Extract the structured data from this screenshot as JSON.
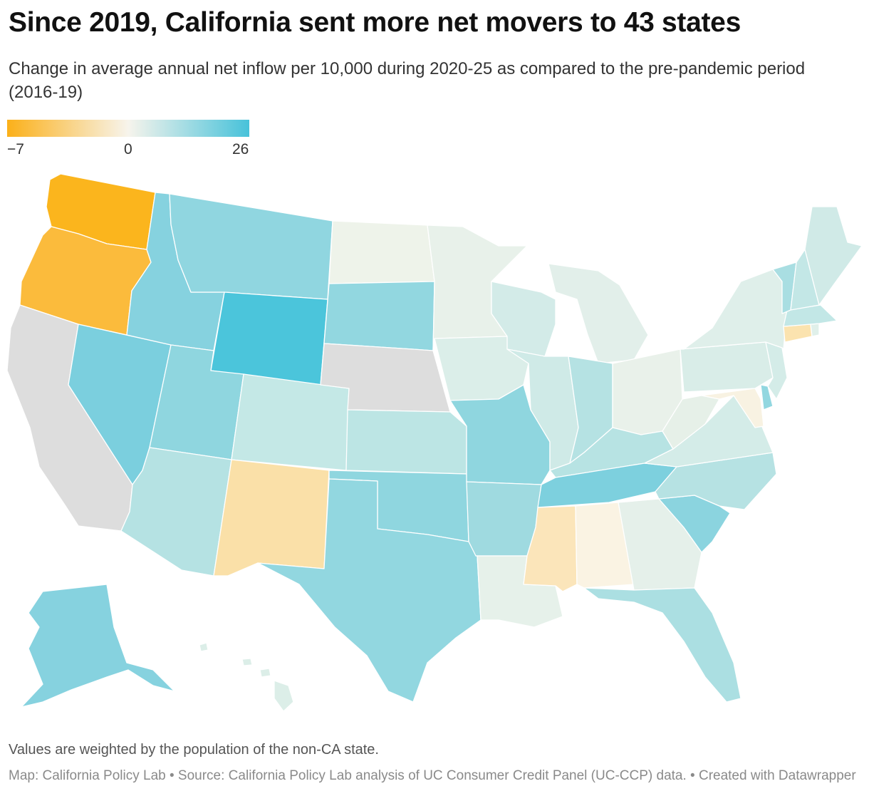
{
  "header": {
    "title": "Since 2019, California sent more net movers to 43 states",
    "subtitle": "Change in average annual net inflow per 10,000 during 2020-25 as compared to the pre-pandemic period (2016-19)"
  },
  "legend": {
    "min_label": "−7",
    "mid_label": "0",
    "max_label": "26",
    "colors": {
      "low": "#fbb019",
      "mid": "#f7f4ec",
      "high": "#47c2da"
    }
  },
  "map": {
    "no_data_color": "#d9d9d9",
    "state_colors": {
      "WA": "#fbb51d",
      "OR": "#fbbb3c",
      "CA": "#dddddd",
      "NV": "#7bcfde",
      "ID": "#86d2df",
      "MT": "#90d6e0",
      "WY": "#4bc5db",
      "UT": "#8fd6df",
      "AZ": "#b5e2e3",
      "CO": "#c4e8e6",
      "NM": "#fae0a8",
      "ND": "#eef3ea",
      "SD": "#92d7e0",
      "NE": "#dddddd",
      "KS": "#bce5e4",
      "OK": "#8fd6df",
      "TX": "#92d7e0",
      "MN": "#e8f1ea",
      "IA": "#dbeee9",
      "MO": "#8fd6df",
      "AR": "#9fdae0",
      "LA": "#e6f1ea",
      "WI": "#d3ebe8",
      "IL": "#cfeae7",
      "MI": "#e2efea",
      "IN": "#b5e2e3",
      "OH": "#e9f1ea",
      "KY": "#b7e3e3",
      "TN": "#7dd0de",
      "MS": "#fbe5ba",
      "AL": "#faf3e3",
      "GA": "#e5f0ea",
      "FL": "#abdfe2",
      "SC": "#8bd4df",
      "NC": "#b6e2e3",
      "VA": "#d4ece8",
      "WV": "#e6f0e8",
      "PA": "#d9ede8",
      "NY": "#dfefea",
      "VT": "#a9dee2",
      "NH": "#c3e7e6",
      "ME": "#d0eae7",
      "MA": "#c2e7e6",
      "CT": "#fbe3af",
      "RI": "#e0f0ea",
      "NJ": "#d4ece8",
      "DE": "#92d7e0",
      "MD": "#f8f2e2",
      "AK": "#86d2df",
      "HI": "#dceee8"
    }
  },
  "footer": {
    "note": "Values are weighted by the population of the non-CA state.",
    "source": "Map: California Policy Lab • Source: California Policy Lab analysis of UC Consumer Credit Panel (UC-CCP) data. • Created with Datawrapper"
  }
}
